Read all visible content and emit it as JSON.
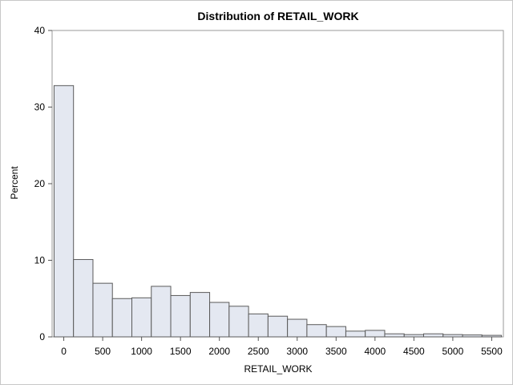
{
  "chart_data": {
    "type": "bar",
    "title": "Distribution of RETAIL_WORK",
    "xlabel": "RETAIL_WORK",
    "ylabel": "Percent",
    "xlim": [
      -150,
      5650
    ],
    "ylim": [
      0,
      40
    ],
    "bin_width": 250,
    "bin_centers": [
      0,
      250,
      500,
      750,
      1000,
      1250,
      1500,
      1750,
      2000,
      2250,
      2500,
      2750,
      3000,
      3250,
      3500,
      3750,
      4000,
      4250,
      4500,
      4750,
      5000,
      5250,
      5500
    ],
    "values": [
      32.8,
      10.1,
      7.0,
      5.0,
      5.1,
      6.6,
      5.4,
      5.8,
      4.5,
      4.0,
      3.0,
      2.7,
      2.3,
      1.6,
      1.35,
      0.75,
      0.85,
      0.4,
      0.3,
      0.4,
      0.3,
      0.25,
      0.2
    ],
    "x_ticks": [
      "0",
      "500",
      "1000",
      "1500",
      "2000",
      "2500",
      "3000",
      "3500",
      "4000",
      "4500",
      "5000",
      "5500"
    ],
    "y_ticks": [
      "0",
      "10",
      "20",
      "30",
      "40"
    ],
    "grid": false,
    "bar_fill": "#e4e8f1",
    "bar_stroke": "#5a5a5a"
  }
}
